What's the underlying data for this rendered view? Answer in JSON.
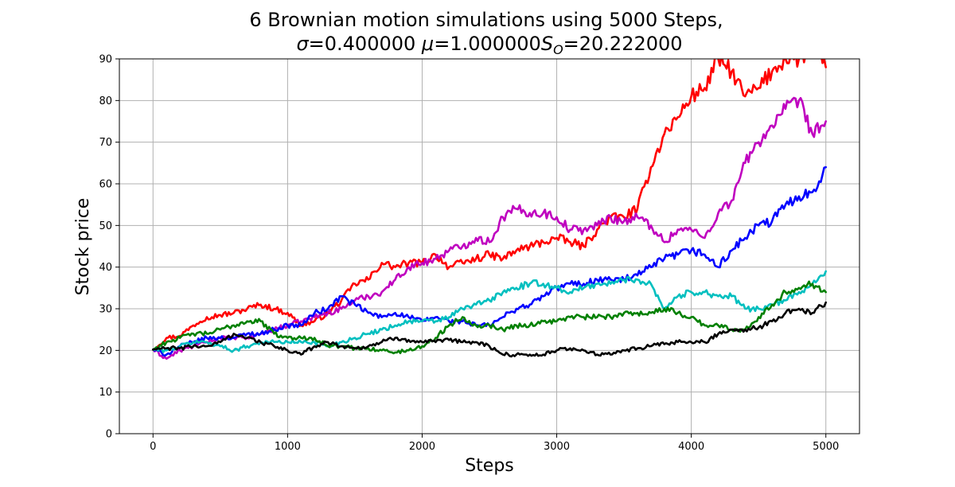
{
  "chart_data": {
    "type": "line",
    "title_line1": "6 Brownian motion simulations using 5000 Steps,",
    "title_line2_parts": {
      "sigma_symbol": "σ",
      "sigma_text": "=0.400000 ",
      "mu_symbol": "μ",
      "mu_text": "=1.000000",
      "s_symbol": "S",
      "s_subscript": "O",
      "s_text": "=20.222000"
    },
    "xlabel": "Steps",
    "ylabel": "Stock price",
    "xlim": [
      -250,
      5250
    ],
    "ylim": [
      0,
      90
    ],
    "x_ticks": [
      0,
      1000,
      2000,
      3000,
      4000,
      5000
    ],
    "y_ticks": [
      0,
      10,
      20,
      30,
      40,
      50,
      60,
      70,
      80,
      90
    ],
    "grid": true,
    "series": [
      {
        "color": "#ff0000",
        "x": [
          0,
          100,
          200,
          300,
          400,
          500,
          600,
          700,
          800,
          900,
          1000,
          1100,
          1200,
          1300,
          1400,
          1500,
          1600,
          1700,
          1800,
          1900,
          2000,
          2100,
          2200,
          2300,
          2400,
          2500,
          2600,
          2700,
          2800,
          2900,
          3000,
          3100,
          3200,
          3300,
          3400,
          3500,
          3600,
          3700,
          3800,
          3900,
          4000,
          4100,
          4200,
          4300,
          4400,
          4500,
          4600,
          4700,
          4800,
          4900,
          5000
        ],
        "values": [
          20.2,
          23,
          23.5,
          26,
          28,
          28.5,
          29,
          30,
          31,
          30,
          29,
          26,
          27,
          29,
          32,
          36,
          37,
          41,
          40,
          41,
          41,
          43,
          40,
          41,
          42,
          43,
          42,
          44,
          45,
          46,
          47,
          46,
          45,
          49,
          52,
          52,
          54,
          64,
          72,
          76,
          81,
          83,
          90,
          87,
          81,
          83,
          87,
          90,
          90,
          92,
          88
        ]
      },
      {
        "color": "#bf00bf",
        "x": [
          0,
          100,
          200,
          300,
          400,
          500,
          600,
          700,
          800,
          900,
          1000,
          1100,
          1200,
          1300,
          1400,
          1500,
          1600,
          1700,
          1800,
          1900,
          2000,
          2100,
          2200,
          2300,
          2400,
          2500,
          2600,
          2700,
          2800,
          2900,
          3000,
          3100,
          3200,
          3300,
          3400,
          3500,
          3600,
          3700,
          3800,
          3900,
          4000,
          4100,
          4200,
          4300,
          4400,
          4500,
          4600,
          4700,
          4800,
          4900,
          5000
        ],
        "values": [
          20.2,
          18,
          20,
          21,
          22,
          23,
          23,
          23,
          24,
          25,
          26,
          27,
          28,
          29,
          30,
          32,
          33,
          34,
          37,
          40,
          41,
          42,
          44,
          45,
          47,
          46,
          52,
          54,
          53,
          53,
          52,
          49,
          49,
          50,
          52,
          51,
          52,
          50,
          46,
          49,
          49,
          47,
          53,
          56,
          65,
          70,
          74,
          78,
          80,
          72,
          75
        ]
      },
      {
        "color": "#0000ff",
        "x": [
          0,
          100,
          200,
          300,
          400,
          500,
          600,
          700,
          800,
          900,
          1000,
          1100,
          1200,
          1300,
          1400,
          1500,
          1600,
          1700,
          1800,
          1900,
          2000,
          2100,
          2200,
          2300,
          2400,
          2500,
          2600,
          2700,
          2800,
          2900,
          3000,
          3100,
          3200,
          3300,
          3400,
          3500,
          3600,
          3700,
          3800,
          3900,
          4000,
          4100,
          4200,
          4300,
          4400,
          4500,
          4600,
          4700,
          4800,
          4900,
          5000
        ],
        "values": [
          20.2,
          19,
          21,
          22,
          23,
          23,
          23,
          24,
          24,
          25,
          26,
          26,
          29,
          30,
          33,
          31,
          29,
          28,
          29,
          28,
          27,
          28,
          27,
          27,
          26,
          26,
          28,
          30,
          31,
          33,
          35,
          36,
          36,
          37,
          37,
          37,
          38,
          40,
          42,
          43,
          44,
          43,
          40,
          44,
          47,
          50,
          51,
          55,
          57,
          58,
          64
        ]
      },
      {
        "color": "#00bfbf",
        "x": [
          0,
          100,
          200,
          300,
          400,
          500,
          600,
          700,
          800,
          900,
          1000,
          1100,
          1200,
          1300,
          1400,
          1500,
          1600,
          1700,
          1800,
          1900,
          2000,
          2100,
          2200,
          2300,
          2400,
          2500,
          2600,
          2700,
          2800,
          2900,
          3000,
          3100,
          3200,
          3300,
          3400,
          3500,
          3600,
          3700,
          3800,
          3900,
          4000,
          4100,
          4200,
          4300,
          4400,
          4500,
          4600,
          4700,
          4800,
          4900,
          5000
        ],
        "values": [
          20.2,
          20,
          21,
          22,
          22,
          21,
          20,
          21,
          22,
          22,
          22,
          22,
          22,
          21,
          22,
          23,
          24,
          25,
          26,
          27,
          27,
          27,
          28,
          30,
          31,
          32,
          34,
          35,
          36,
          36,
          35,
          34,
          35,
          36,
          36,
          37,
          37,
          36,
          30,
          33,
          34,
          34,
          33,
          33,
          30,
          30,
          31,
          32,
          34,
          36,
          39
        ]
      },
      {
        "color": "#008000",
        "x": [
          0,
          100,
          200,
          300,
          400,
          500,
          600,
          700,
          800,
          900,
          1000,
          1100,
          1200,
          1300,
          1400,
          1500,
          1600,
          1700,
          1800,
          1900,
          2000,
          2100,
          2200,
          2300,
          2400,
          2500,
          2600,
          2700,
          2800,
          2900,
          3000,
          3100,
          3200,
          3300,
          3400,
          3500,
          3600,
          3700,
          3800,
          3900,
          4000,
          4100,
          4200,
          4300,
          4400,
          4500,
          4600,
          4700,
          4800,
          4900,
          5000
        ],
        "values": [
          20.2,
          22,
          23,
          24,
          24,
          25,
          26,
          27,
          27,
          24,
          23,
          23,
          23,
          21,
          21,
          20.5,
          20.5,
          20,
          19.5,
          20,
          21,
          23,
          26,
          28,
          26,
          26,
          25,
          26,
          26,
          27,
          27,
          28,
          28,
          28,
          28,
          29,
          29,
          29,
          30,
          29,
          28,
          26,
          26,
          25,
          25,
          28,
          31,
          34,
          35,
          36,
          34
        ]
      },
      {
        "color": "#000000",
        "x": [
          0,
          100,
          200,
          300,
          400,
          500,
          600,
          700,
          800,
          900,
          1000,
          1100,
          1200,
          1300,
          1400,
          1500,
          1600,
          1700,
          1800,
          1900,
          2000,
          2100,
          2200,
          2300,
          2400,
          2500,
          2600,
          2700,
          2800,
          2900,
          3000,
          3100,
          3200,
          3300,
          3400,
          3500,
          3600,
          3700,
          3800,
          3900,
          4000,
          4100,
          4200,
          4300,
          4400,
          4500,
          4600,
          4700,
          4800,
          4900,
          5000
        ],
        "values": [
          20.2,
          20.5,
          20.5,
          21,
          21,
          22,
          24,
          23,
          22,
          21,
          20,
          19,
          21,
          22,
          21,
          20.5,
          21,
          22,
          23,
          22.5,
          22,
          22,
          22.5,
          22,
          22,
          21,
          19,
          19,
          19,
          19,
          20,
          20.5,
          20,
          19,
          19,
          20,
          20.5,
          21,
          21.5,
          22,
          22,
          22,
          24,
          25,
          25,
          25.5,
          27,
          29,
          30,
          29,
          31.5
        ]
      }
    ]
  }
}
